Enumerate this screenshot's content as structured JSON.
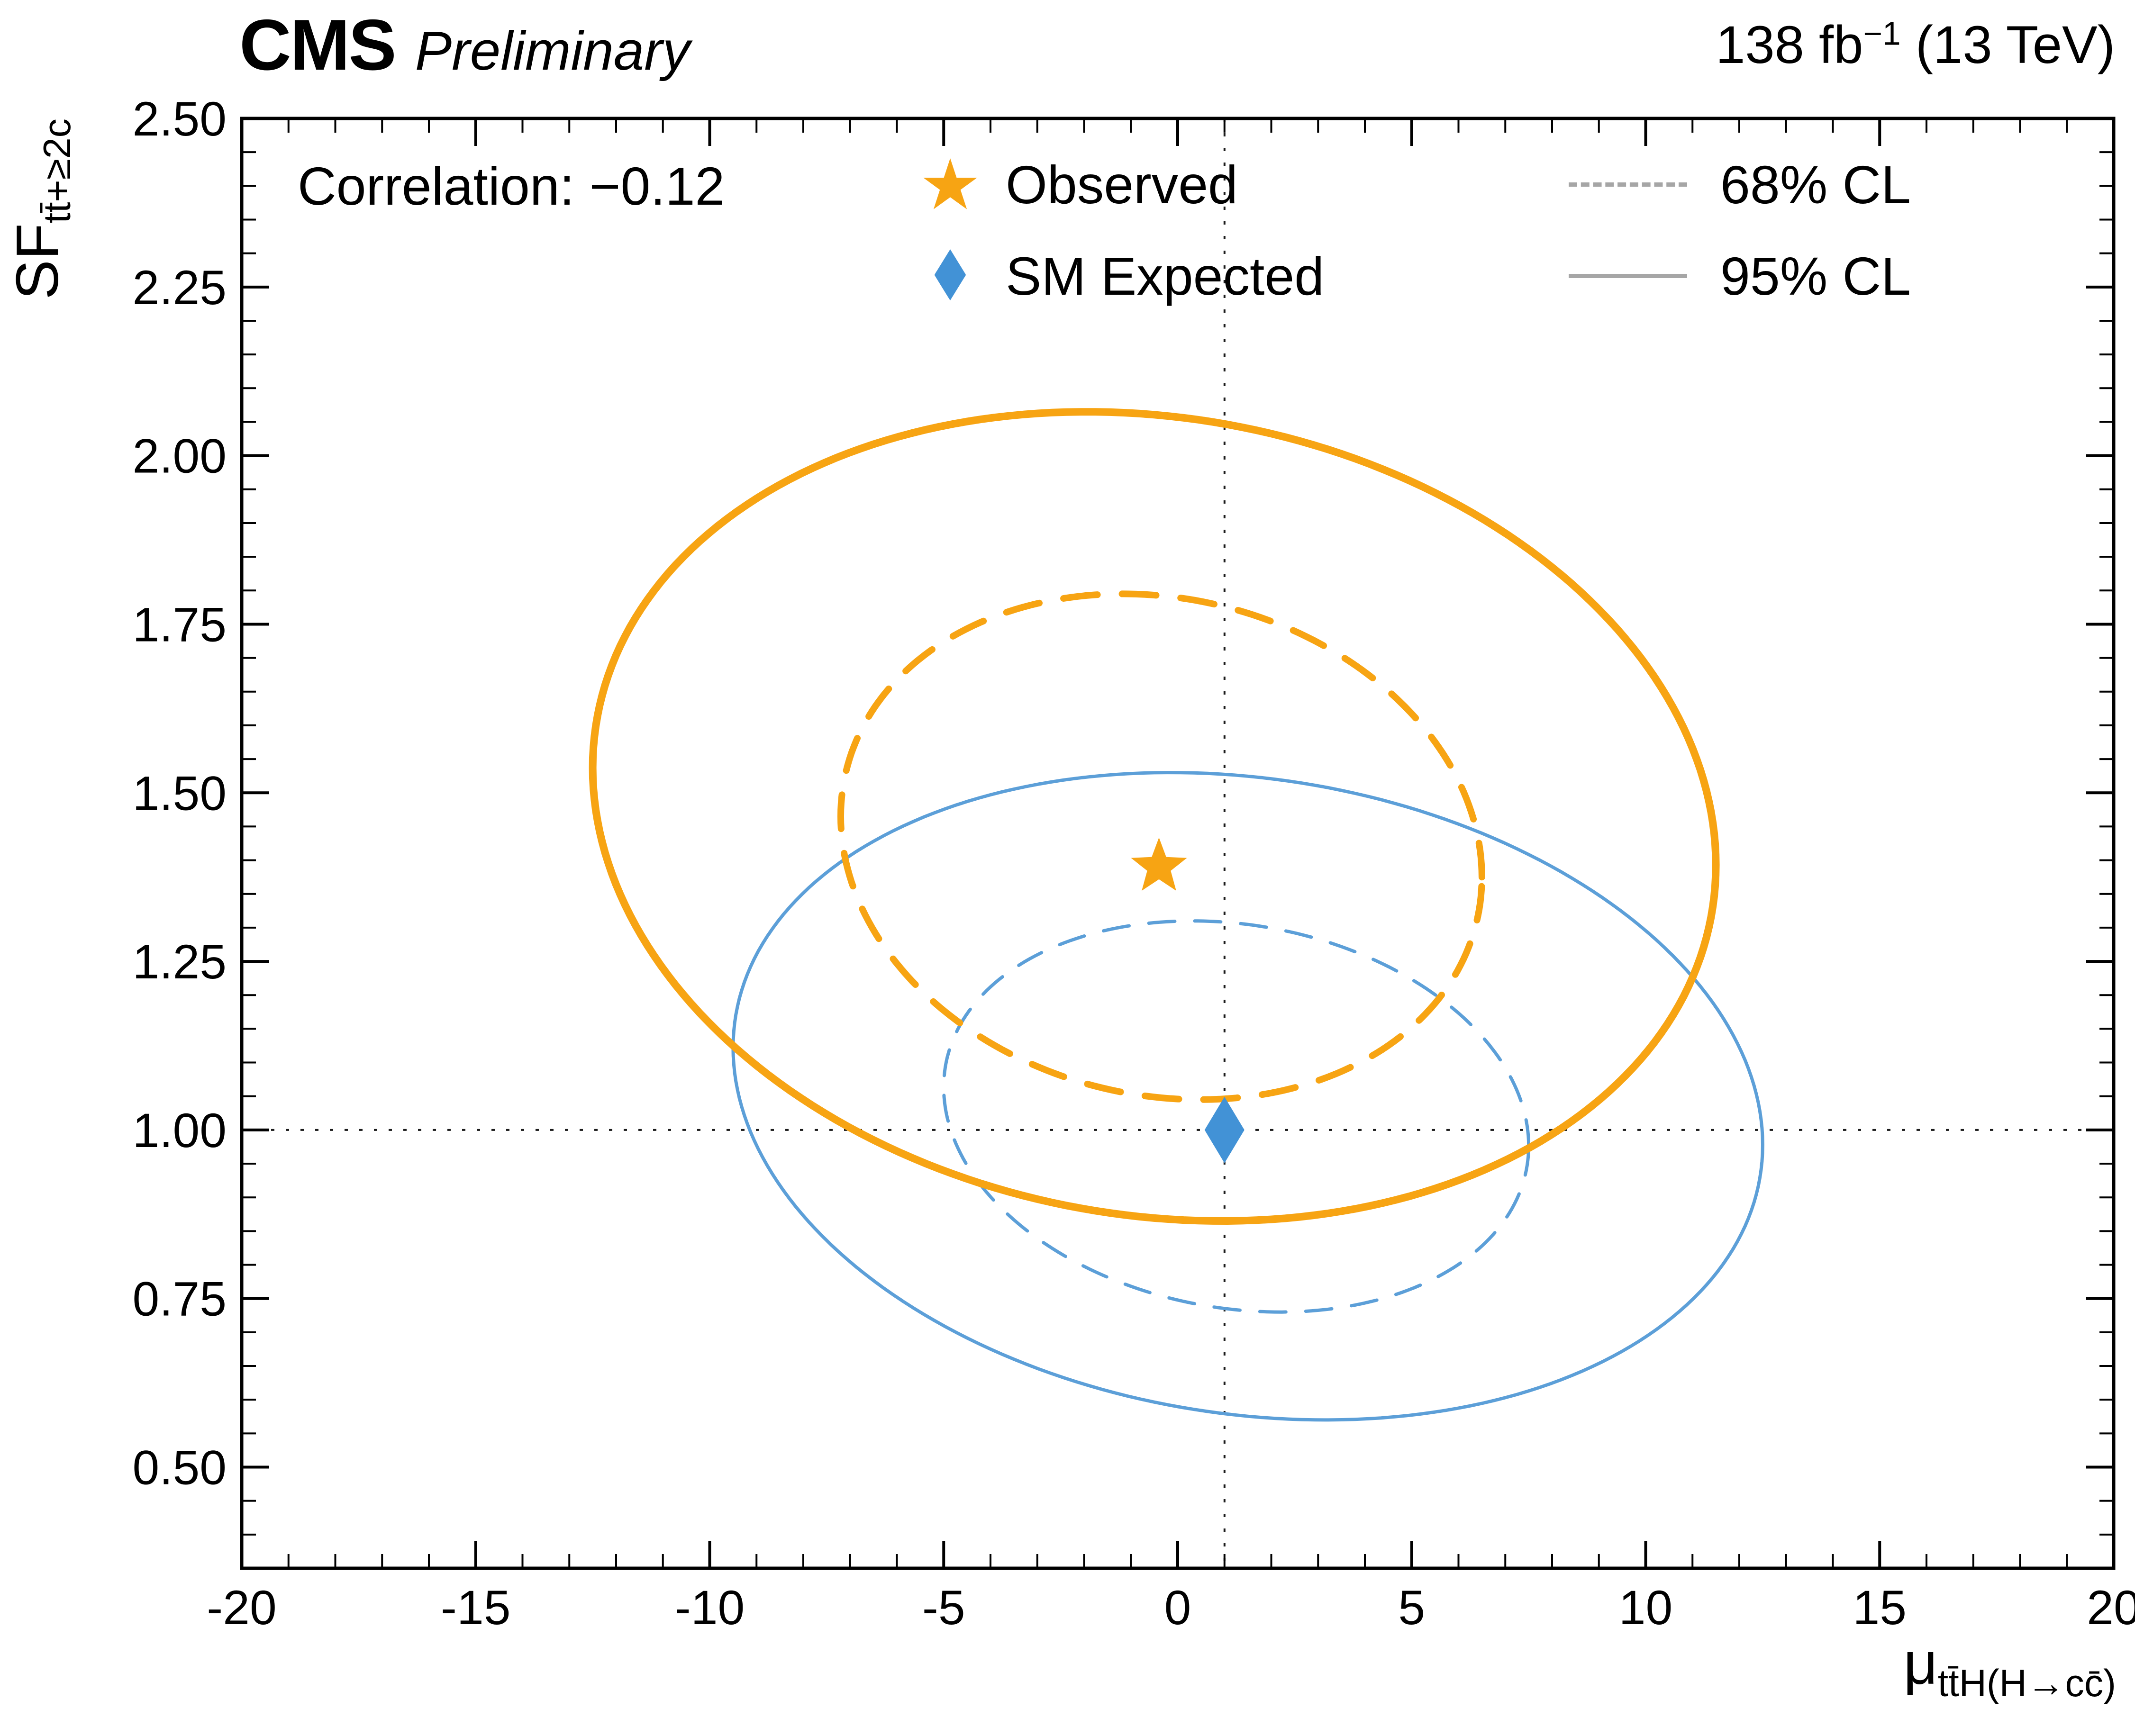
{
  "header": {
    "experiment": "CMS",
    "label": "Preliminary",
    "lumi_prefix": "138 fb",
    "lumi_sup": "−1",
    "lumi_suffix": " (13 TeV)"
  },
  "annotation": {
    "correlation": "Correlation: −0.12"
  },
  "legend": {
    "observed": "Observed",
    "expected": "SM Expected",
    "cl68": "68% CL",
    "cl95": "95% CL"
  },
  "icons": {
    "star": "★",
    "diamond": "♦"
  },
  "axes": {
    "x_label_main": "μ",
    "x_label_sub": "tt̄H(H→cc̄)",
    "y_label_main": "SF",
    "y_label_sub": "tt̄+≥2c"
  },
  "colors": {
    "observed": "#F7A413",
    "expected_line": "#5C9FD8",
    "expected_marker": "#4292D6",
    "legend_line": "#A6A6A6",
    "frame": "#000000"
  },
  "chart_data": {
    "type": "scatter",
    "subtype": "confidence-contour-ellipses",
    "title": "",
    "xlabel": "mu_ttH(H->cc)",
    "ylabel": "SF_tt+>=2c",
    "correlation": -0.12,
    "x_range": [
      -20,
      20
    ],
    "y_range": [
      0.35,
      2.5
    ],
    "grid": false,
    "legend_position": "top-inside",
    "x_ticks": [
      {
        "value": -20,
        "label": "-20"
      },
      {
        "value": -15,
        "label": "-15"
      },
      {
        "value": -10,
        "label": "-10"
      },
      {
        "value": -5,
        "label": "-5"
      },
      {
        "value": 0,
        "label": "0"
      },
      {
        "value": 5,
        "label": "5"
      },
      {
        "value": 10,
        "label": "10"
      },
      {
        "value": 15,
        "label": "15"
      },
      {
        "value": 20,
        "label": "20"
      }
    ],
    "y_ticks": [
      {
        "value": 0.5,
        "label": "0.50"
      },
      {
        "value": 0.75,
        "label": "0.75"
      },
      {
        "value": 1.0,
        "label": "1.00"
      },
      {
        "value": 1.25,
        "label": "1.25"
      },
      {
        "value": 1.5,
        "label": "1.50"
      },
      {
        "value": 1.75,
        "label": "1.75"
      },
      {
        "value": 2.0,
        "label": "2.00"
      },
      {
        "value": 2.25,
        "label": "2.25"
      },
      {
        "value": 2.5,
        "label": "2.50"
      }
    ],
    "crosshair": {
      "x": 1.0,
      "y": 1.0
    },
    "ellipses": [
      {
        "name": "expected-95-contour",
        "series": "SM Expected 95% CL",
        "color": "#5C9FD8",
        "style": "solid",
        "width": 7,
        "cx": 1.5,
        "cy": 1.05,
        "sx": 11.0,
        "sy": 0.48,
        "rho": -0.15
      },
      {
        "name": "expected-68-contour",
        "series": "SM Expected 68% CL",
        "color": "#5C9FD8",
        "style": "dashed",
        "dash": "55 42",
        "width": 7,
        "cx": 1.25,
        "cy": 1.02,
        "sx": 6.25,
        "sy": 0.29,
        "rho": -0.15
      },
      {
        "name": "observed-95-contour",
        "series": "Observed 95% CL",
        "color": "#F7A413",
        "style": "solid",
        "width": 16,
        "cx": -0.5,
        "cy": 1.465,
        "sx": 12.0,
        "sy": 0.6,
        "rho": -0.12
      },
      {
        "name": "observed-68-contour",
        "series": "Observed 68% CL",
        "color": "#F7A413",
        "style": "dashed",
        "dash": "72 52",
        "width": 14,
        "cx": -0.35,
        "cy": 1.42,
        "sx": 6.85,
        "sy": 0.375,
        "rho": -0.12
      }
    ],
    "markers": [
      {
        "name": "observed-best-fit-marker",
        "series": "Observed",
        "shape": "star",
        "x": -0.4,
        "y": 1.39,
        "color": "#F7A413",
        "size": 62
      },
      {
        "name": "sm-expected-marker",
        "series": "SM Expected",
        "shape": "diamond",
        "x": 1.0,
        "y": 1.0,
        "color": "#4292D6",
        "size": 70
      }
    ]
  }
}
